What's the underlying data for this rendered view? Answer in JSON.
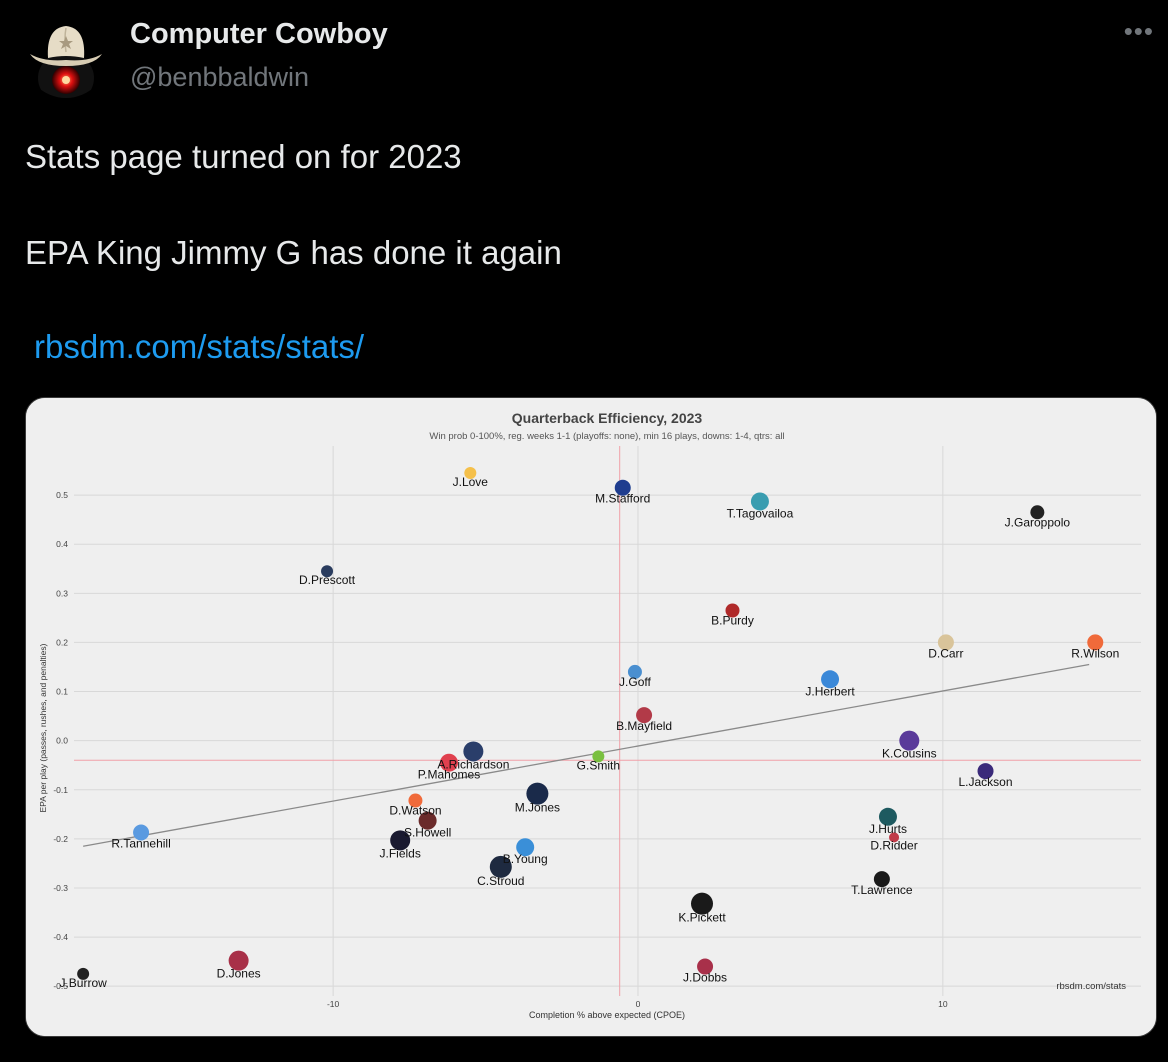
{
  "tweet": {
    "display_name": "Computer Cowboy",
    "handle": "@benbbaldwin",
    "more_icon": "more-dots-icon",
    "lines": [
      "Stats page turned on for 2023",
      "EPA King Jimmy G has done it again"
    ],
    "link": "rbsdm.com/stats/stats/"
  },
  "chart_data": {
    "type": "scatter",
    "title": "Quarterback Efficiency, 2023",
    "subtitle": "Win prob 0-100%, reg. weeks 1-1 (playoffs: none), min 16 plays, downs: 1-4, qtrs: all",
    "xlabel": "Completion % above expected (CPOE)",
    "ylabel": "EPA per play (passes, rushes, and penalties)",
    "source": "rbsdm.com/stats",
    "xlim": [
      -18.5,
      16.5
    ],
    "ylim": [
      -0.52,
      0.6
    ],
    "x_ticks": [
      -10,
      0,
      10
    ],
    "y_ticks": [
      0.5,
      0.4,
      0.3,
      0.2,
      0.1,
      0.0,
      -0.1,
      -0.2,
      -0.3,
      -0.4,
      -0.5
    ],
    "x_ticks_text": [
      "-10",
      "0",
      "10"
    ],
    "y_ticks_text": [
      "0.5",
      "0.4",
      "0.3",
      "0.2",
      "0.1",
      "0.0",
      "-0.1",
      "-0.2",
      "-0.3",
      "-0.4",
      "-0.5"
    ],
    "mean_x": -0.6,
    "mean_y": -0.04,
    "trend": {
      "x1": -18.2,
      "y1": -0.215,
      "x2": 14.8,
      "y2": 0.155
    },
    "grid": true,
    "points": [
      {
        "name": "J.Love",
        "x": -5.5,
        "y": 0.545,
        "color": "#f5c04a",
        "r": 6
      },
      {
        "name": "M.Stafford",
        "x": -0.5,
        "y": 0.515,
        "color": "#1e3d8f",
        "r": 8
      },
      {
        "name": "T.Tagovailoa",
        "x": 4.0,
        "y": 0.487,
        "color": "#3a9db0",
        "r": 9
      },
      {
        "name": "J.Garoppolo",
        "x": 13.1,
        "y": 0.465,
        "color": "#222222",
        "r": 7
      },
      {
        "name": "D.Prescott",
        "x": -10.2,
        "y": 0.345,
        "color": "#2a3c5e",
        "r": 6
      },
      {
        "name": "B.Purdy",
        "x": 3.1,
        "y": 0.265,
        "color": "#b02a2a",
        "r": 7
      },
      {
        "name": "R.Wilson",
        "x": 15.0,
        "y": 0.2,
        "color": "#f06a3a",
        "r": 8
      },
      {
        "name": "D.Carr",
        "x": 10.1,
        "y": 0.2,
        "color": "#d9c49a",
        "r": 8
      },
      {
        "name": "J.Goff",
        "x": -0.1,
        "y": 0.14,
        "color": "#4a8fd0",
        "r": 7
      },
      {
        "name": "J.Herbert",
        "x": 6.3,
        "y": 0.125,
        "color": "#3a88d8",
        "r": 9
      },
      {
        "name": "B.Mayfield",
        "x": 0.2,
        "y": 0.052,
        "color": "#b23a48",
        "r": 8
      },
      {
        "name": "K.Cousins",
        "x": 8.9,
        "y": 0.0,
        "color": "#5a3a9a",
        "r": 10
      },
      {
        "name": "A.Richardson",
        "x": -5.4,
        "y": -0.022,
        "color": "#2a3e6a",
        "r": 10
      },
      {
        "name": "G.Smith",
        "x": -1.3,
        "y": -0.032,
        "color": "#7ac040",
        "r": 6
      },
      {
        "name": "P.Mahomes",
        "x": -6.2,
        "y": -0.045,
        "color": "#e0404e",
        "r": 9
      },
      {
        "name": "L.Jackson",
        "x": 11.4,
        "y": -0.062,
        "color": "#3a2a7a",
        "r": 8
      },
      {
        "name": "M.Jones",
        "x": -3.3,
        "y": -0.108,
        "color": "#1a2a4a",
        "r": 11
      },
      {
        "name": "D.Watson",
        "x": -7.3,
        "y": -0.122,
        "color": "#f06a3a",
        "r": 7
      },
      {
        "name": "R.Tannehill",
        "x": -16.3,
        "y": -0.187,
        "color": "#5a9ae0",
        "r": 8
      },
      {
        "name": "J.Hurts",
        "x": 8.2,
        "y": -0.155,
        "color": "#1e5a60",
        "r": 9
      },
      {
        "name": "S.Howell",
        "x": -6.9,
        "y": -0.163,
        "color": "#6a2a2a",
        "r": 9
      },
      {
        "name": "D.Ridder",
        "x": 8.4,
        "y": -0.197,
        "color": "#c03a48",
        "r": 5
      },
      {
        "name": "J.Fields",
        "x": -7.8,
        "y": -0.203,
        "color": "#1a1a30",
        "r": 10
      },
      {
        "name": "B.Young",
        "x": -3.7,
        "y": -0.217,
        "color": "#3a8fd8",
        "r": 9
      },
      {
        "name": "C.Stroud",
        "x": -4.5,
        "y": -0.257,
        "color": "#1e2a40",
        "r": 11
      },
      {
        "name": "T.Lawrence",
        "x": 8.0,
        "y": -0.282,
        "color": "#1a1a1a",
        "r": 8
      },
      {
        "name": "K.Pickett",
        "x": 2.1,
        "y": -0.332,
        "color": "#1a1a1a",
        "r": 11
      },
      {
        "name": "J.Dobbs",
        "x": 2.2,
        "y": -0.46,
        "color": "#a8304a",
        "r": 8
      },
      {
        "name": "D.Jones",
        "x": -13.1,
        "y": -0.448,
        "color": "#a83048",
        "r": 10
      },
      {
        "name": "J.Burrow",
        "x": -18.2,
        "y": -0.475,
        "color": "#222222",
        "r": 6
      }
    ]
  }
}
